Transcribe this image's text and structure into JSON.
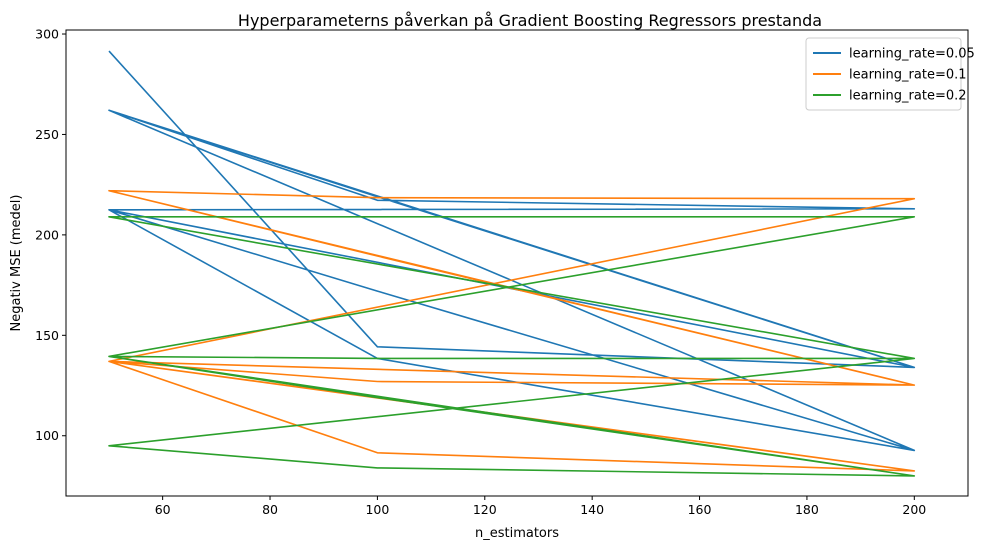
{
  "chart_data": {
    "type": "line",
    "title": "Hyperparameterns påverkan på Gradient Boosting Regressors prestanda",
    "xlabel": "n_estimators",
    "ylabel": "Negativ MSE (medel)",
    "xlim": [
      42,
      210
    ],
    "ylim": [
      70,
      302
    ],
    "xticks": [
      60,
      80,
      100,
      120,
      140,
      160,
      180,
      200
    ],
    "yticks": [
      100,
      150,
      200,
      250,
      300
    ],
    "grid": false,
    "legend_position": "top-right",
    "x": [
      50,
      100,
      200,
      50,
      100,
      200,
      50,
      100,
      200,
      50,
      100,
      200,
      50,
      100,
      200,
      50,
      100,
      200,
      50,
      100,
      200,
      50,
      100,
      200,
      50,
      100,
      200
    ],
    "series": [
      {
        "name": "learning_rate=0.05",
        "color": "#1f77b4",
        "y": [
          291.5,
          144.3,
          134.0,
          262.0,
          217.2,
          213.0,
          212.5,
          138.5,
          92.7,
          262.0,
          219.0,
          134.0,
          212.5,
          172.0,
          92.7,
          262.0,
          219.0,
          134.0,
          262.0,
          219.0,
          134.0,
          262.0,
          219.0,
          134.0,
          262.0,
          219.0,
          134.0
        ]
      },
      {
        "name": "learning_rate=0.1",
        "color": "#ff7f0e",
        "y": [
          222.0,
          218.5,
          218.0,
          137.0,
          127.0,
          125.2,
          222.0,
          189.5,
          125.2,
          137.0,
          91.5,
          82.5,
          137.0,
          119.0,
          82.5,
          137.0,
          119.0,
          82.5,
          137.0,
          119.0,
          82.5,
          137.0,
          119.0,
          82.5,
          137.0,
          119.0,
          82.5
        ]
      },
      {
        "name": "learning_rate=0.2",
        "color": "#2ca02c",
        "y": [
          209.0,
          209.0,
          209.0,
          139.5,
          138.5,
          138.5,
          209.0,
          185.5,
          138.5,
          95.0,
          84.0,
          80.0,
          139.5,
          119.0,
          80.0,
          139.5,
          119.0,
          80.0,
          139.5,
          119.0,
          80.0,
          139.5,
          119.0,
          80.0,
          139.5,
          119.0,
          80.0
        ]
      }
    ]
  }
}
